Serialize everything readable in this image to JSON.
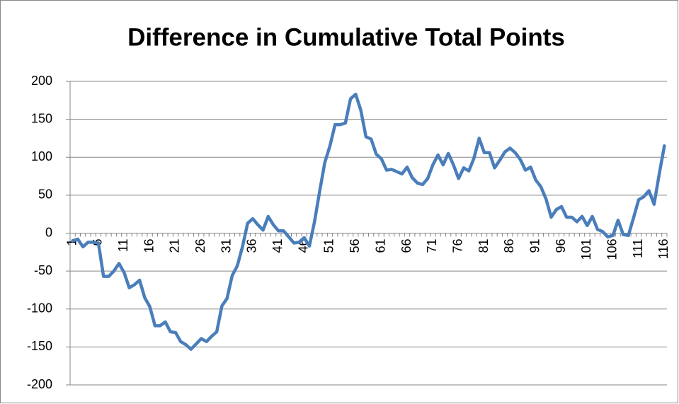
{
  "chart_data": {
    "type": "line",
    "title": "Difference in Cumulative Total Points",
    "categories": [
      "1",
      null,
      null,
      null,
      null,
      "6",
      null,
      null,
      null,
      null,
      "11",
      null,
      null,
      null,
      null,
      "16",
      null,
      null,
      null,
      null,
      "21",
      null,
      null,
      null,
      null,
      "26",
      null,
      null,
      null,
      null,
      "31",
      null,
      null,
      null,
      null,
      "36",
      null,
      null,
      null,
      null,
      "41",
      null,
      null,
      null,
      null,
      "46",
      null,
      null,
      null,
      null,
      "51",
      null,
      null,
      null,
      null,
      "56",
      null,
      null,
      null,
      null,
      "61",
      null,
      null,
      null,
      null,
      "66",
      null,
      null,
      null,
      null,
      "71",
      null,
      null,
      null,
      null,
      "76",
      null,
      null,
      null,
      null,
      "81",
      null,
      null,
      null,
      null,
      "86",
      null,
      null,
      null,
      null,
      "91",
      null,
      null,
      null,
      null,
      "96",
      null,
      null,
      null,
      null,
      "101",
      null,
      null,
      null,
      null,
      "106",
      null,
      null,
      null,
      null,
      "111",
      null,
      null,
      null,
      null,
      "116"
    ],
    "values": [
      -10,
      -8,
      -18,
      -12,
      -12,
      -13,
      -57,
      -57,
      -50,
      -40,
      -52,
      -72,
      -68,
      -62,
      -85,
      -97,
      -122,
      -122,
      -117,
      -130,
      -131,
      -143,
      -147,
      -153,
      -146,
      -139,
      -143,
      -136,
      -130,
      -96,
      -86,
      -56,
      -43,
      -18,
      13,
      19,
      11,
      4,
      22,
      11,
      3,
      3,
      -5,
      -13,
      -12,
      -6,
      -17,
      15,
      55,
      93,
      115,
      143,
      143,
      145,
      177,
      183,
      162,
      127,
      124,
      104,
      98,
      83,
      84,
      81,
      78,
      87,
      73,
      66,
      64,
      72,
      90,
      103,
      90,
      105,
      90,
      72,
      86,
      82,
      99,
      125,
      106,
      106,
      86,
      96,
      107,
      112,
      106,
      97,
      83,
      87,
      70,
      61,
      45,
      21,
      31,
      35,
      21,
      21,
      15,
      22,
      10,
      22,
      5,
      2,
      -5,
      -3,
      17,
      -2,
      -3,
      20,
      44,
      48,
      56,
      38,
      78,
      115
    ],
    "color": "#4a7ebb",
    "ylim": [
      -200,
      200
    ],
    "yticks": [
      -200,
      -150,
      -100,
      -50,
      0,
      50,
      100,
      150,
      200
    ],
    "grid": true
  }
}
